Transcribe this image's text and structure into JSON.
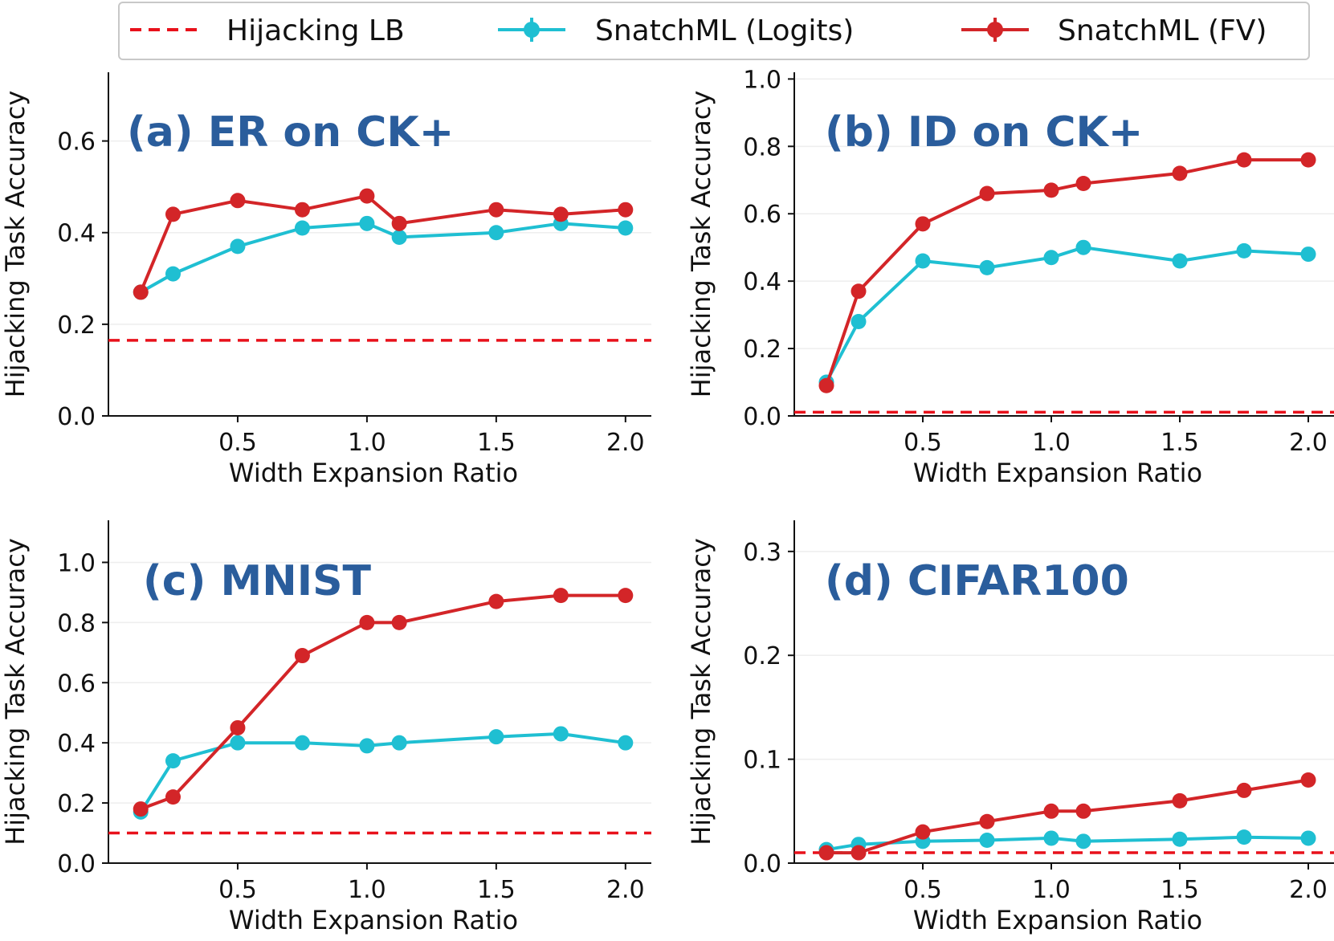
{
  "legend": {
    "location": "top-center",
    "entries": [
      {
        "label": "Hijacking LB",
        "color": "#e8111b",
        "style": "dashed"
      },
      {
        "label": "SnatchML (Logits)",
        "color": "#1fbfd2",
        "style": "line-marker"
      },
      {
        "label": "SnatchML (FV)",
        "color": "#d32528",
        "style": "line-marker"
      }
    ]
  },
  "chart_data": [
    {
      "type": "line",
      "title": "(a) ER on CK+",
      "xlabel": "Width Expansion Ratio",
      "ylabel": "Hijacking Task Accuracy",
      "xlim": [
        0.0,
        2.1
      ],
      "ylim": [
        0.0,
        0.75
      ],
      "xticks": [
        0.5,
        1.0,
        1.5,
        2.0
      ],
      "xtick_labels": [
        "0.5",
        "1.0",
        "1.5",
        "2.0"
      ],
      "yticks": [
        0.0,
        0.2,
        0.4,
        0.6
      ],
      "ytick_labels": [
        "0.0",
        "0.2",
        "0.4",
        "0.6"
      ],
      "baseline": {
        "name": "Hijacking LB",
        "value": 0.165
      },
      "x": [
        0.125,
        0.25,
        0.5,
        0.75,
        1.0,
        1.125,
        1.5,
        1.75,
        2.0
      ],
      "series": [
        {
          "name": "SnatchML (Logits)",
          "values": [
            0.27,
            0.31,
            0.37,
            0.41,
            0.42,
            0.39,
            0.4,
            0.42,
            0.41
          ],
          "errors": [
            0.005,
            0.005,
            0.005,
            0.005,
            0.005,
            0.005,
            0.005,
            0.005,
            0.005
          ]
        },
        {
          "name": "SnatchML (FV)",
          "values": [
            0.27,
            0.44,
            0.47,
            0.45,
            0.48,
            0.42,
            0.45,
            0.44,
            0.45
          ],
          "errors": [
            0.005,
            0.005,
            0.005,
            0.005,
            0.005,
            0.005,
            0.005,
            0.005,
            0.005
          ]
        }
      ]
    },
    {
      "type": "line",
      "title": "(b) ID on CK+",
      "xlabel": "Width Expansion Ratio",
      "ylabel": "Hijacking Task Accuracy",
      "xlim": [
        0.0,
        2.1
      ],
      "ylim": [
        0.0,
        1.02
      ],
      "xticks": [
        0.5,
        1.0,
        1.5,
        2.0
      ],
      "xtick_labels": [
        "0.5",
        "1.0",
        "1.5",
        "2.0"
      ],
      "yticks": [
        0.0,
        0.2,
        0.4,
        0.6,
        0.8,
        1.0
      ],
      "ytick_labels": [
        "0.0",
        "0.2",
        "0.4",
        "0.6",
        "0.8",
        "1.0"
      ],
      "baseline": {
        "name": "Hijacking LB",
        "value": 0.011
      },
      "x": [
        0.125,
        0.25,
        0.5,
        0.75,
        1.0,
        1.125,
        1.5,
        1.75,
        2.0
      ],
      "series": [
        {
          "name": "SnatchML (Logits)",
          "values": [
            0.1,
            0.28,
            0.46,
            0.44,
            0.47,
            0.5,
            0.46,
            0.49,
            0.48
          ],
          "errors": [
            0.005,
            0.005,
            0.005,
            0.005,
            0.005,
            0.005,
            0.005,
            0.005,
            0.005
          ]
        },
        {
          "name": "SnatchML (FV)",
          "values": [
            0.09,
            0.37,
            0.57,
            0.66,
            0.67,
            0.69,
            0.72,
            0.76,
            0.76
          ],
          "errors": [
            0.005,
            0.005,
            0.005,
            0.005,
            0.005,
            0.005,
            0.005,
            0.005,
            0.005
          ]
        }
      ]
    },
    {
      "type": "line",
      "title": "(c) MNIST",
      "xlabel": "Width Expansion Ratio",
      "ylabel": "Hijacking Task Accuracy",
      "xlim": [
        0.0,
        2.1
      ],
      "ylim": [
        0.0,
        1.14
      ],
      "xticks": [
        0.5,
        1.0,
        1.5,
        2.0
      ],
      "xtick_labels": [
        "0.5",
        "1.0",
        "1.5",
        "2.0"
      ],
      "yticks": [
        0.0,
        0.2,
        0.4,
        0.6,
        0.8,
        1.0
      ],
      "ytick_labels": [
        "0.0",
        "0.2",
        "0.4",
        "0.6",
        "0.8",
        "1.0"
      ],
      "baseline": {
        "name": "Hijacking LB",
        "value": 0.1
      },
      "x": [
        0.125,
        0.25,
        0.5,
        0.75,
        1.0,
        1.125,
        1.5,
        1.75,
        2.0
      ],
      "series": [
        {
          "name": "SnatchML (Logits)",
          "values": [
            0.17,
            0.34,
            0.4,
            0.4,
            0.39,
            0.4,
            0.42,
            0.43,
            0.4
          ],
          "errors": [
            0.005,
            0.005,
            0.005,
            0.005,
            0.005,
            0.005,
            0.005,
            0.005,
            0.005
          ]
        },
        {
          "name": "SnatchML (FV)",
          "values": [
            0.18,
            0.22,
            0.45,
            0.69,
            0.8,
            0.8,
            0.87,
            0.89,
            0.89
          ],
          "errors": [
            0.005,
            0.005,
            0.005,
            0.005,
            0.005,
            0.005,
            0.005,
            0.005,
            0.005
          ]
        }
      ]
    },
    {
      "type": "line",
      "title": "(d) CIFAR100",
      "xlabel": "Width Expansion Ratio",
      "ylabel": "Hijacking Task Accuracy",
      "xlim": [
        0.0,
        2.1
      ],
      "ylim": [
        0.0,
        0.33
      ],
      "xticks": [
        0.5,
        1.0,
        1.5,
        2.0
      ],
      "xtick_labels": [
        "0.5",
        "1.0",
        "1.5",
        "2.0"
      ],
      "yticks": [
        0.0,
        0.1,
        0.2,
        0.3
      ],
      "ytick_labels": [
        "0.0",
        "0.1",
        "0.2",
        "0.3"
      ],
      "baseline": {
        "name": "Hijacking LB",
        "value": 0.01
      },
      "x": [
        0.125,
        0.25,
        0.5,
        0.75,
        1.0,
        1.125,
        1.5,
        1.75,
        2.0
      ],
      "series": [
        {
          "name": "SnatchML (Logits)",
          "values": [
            0.013,
            0.018,
            0.021,
            0.022,
            0.024,
            0.021,
            0.023,
            0.025,
            0.024
          ],
          "errors": [
            0.006,
            0.006,
            0.006,
            0.006,
            0.006,
            0.006,
            0.006,
            0.006,
            0.006
          ]
        },
        {
          "name": "SnatchML (FV)",
          "values": [
            0.01,
            0.01,
            0.03,
            0.04,
            0.05,
            0.05,
            0.06,
            0.07,
            0.08
          ],
          "errors": [
            0.007,
            0.006,
            0.007,
            0.007,
            0.007,
            0.007,
            0.007,
            0.007,
            0.007
          ]
        }
      ]
    }
  ]
}
